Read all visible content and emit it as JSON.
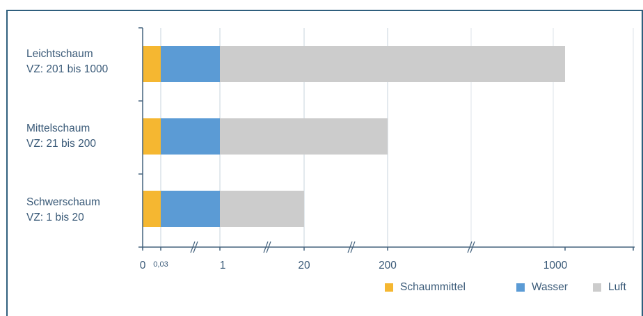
{
  "chart_data": {
    "type": "bar",
    "orientation": "horizontal",
    "stacked": true,
    "categories": [
      "Leichtschaum\nVZ: 201 bis 1000",
      "Mittelschaum\nVZ: 21 bis 200",
      "Schwerschaum\nVZ: 1 bis 20"
    ],
    "category_lines": [
      [
        "Leichtschaum",
        "VZ: 201 bis 1000"
      ],
      [
        "Mittelschaum",
        "VZ: 21 bis 200"
      ],
      [
        "Schwerschaum",
        "VZ: 1 bis 20"
      ]
    ],
    "series": [
      {
        "name": "Schaummittel",
        "color": "#f5b731",
        "start": [
          0,
          0,
          0
        ],
        "end": [
          0.03,
          0.03,
          0.03
        ]
      },
      {
        "name": "Wasser",
        "color": "#5b9bd5",
        "start": [
          0.03,
          0.03,
          0.03
        ],
        "end": [
          1,
          1,
          1
        ]
      },
      {
        "name": "Luft",
        "color": "#cccccc",
        "start": [
          1,
          1,
          1
        ],
        "end": [
          1000,
          200,
          20
        ]
      }
    ],
    "x_ticks": [
      "0",
      "0,03",
      "1",
      "20",
      "200",
      "1000"
    ],
    "x_scale": "broken (axis breaks marked with //)",
    "grid": "vertical gridlines",
    "legend_position": "bottom-right"
  }
}
